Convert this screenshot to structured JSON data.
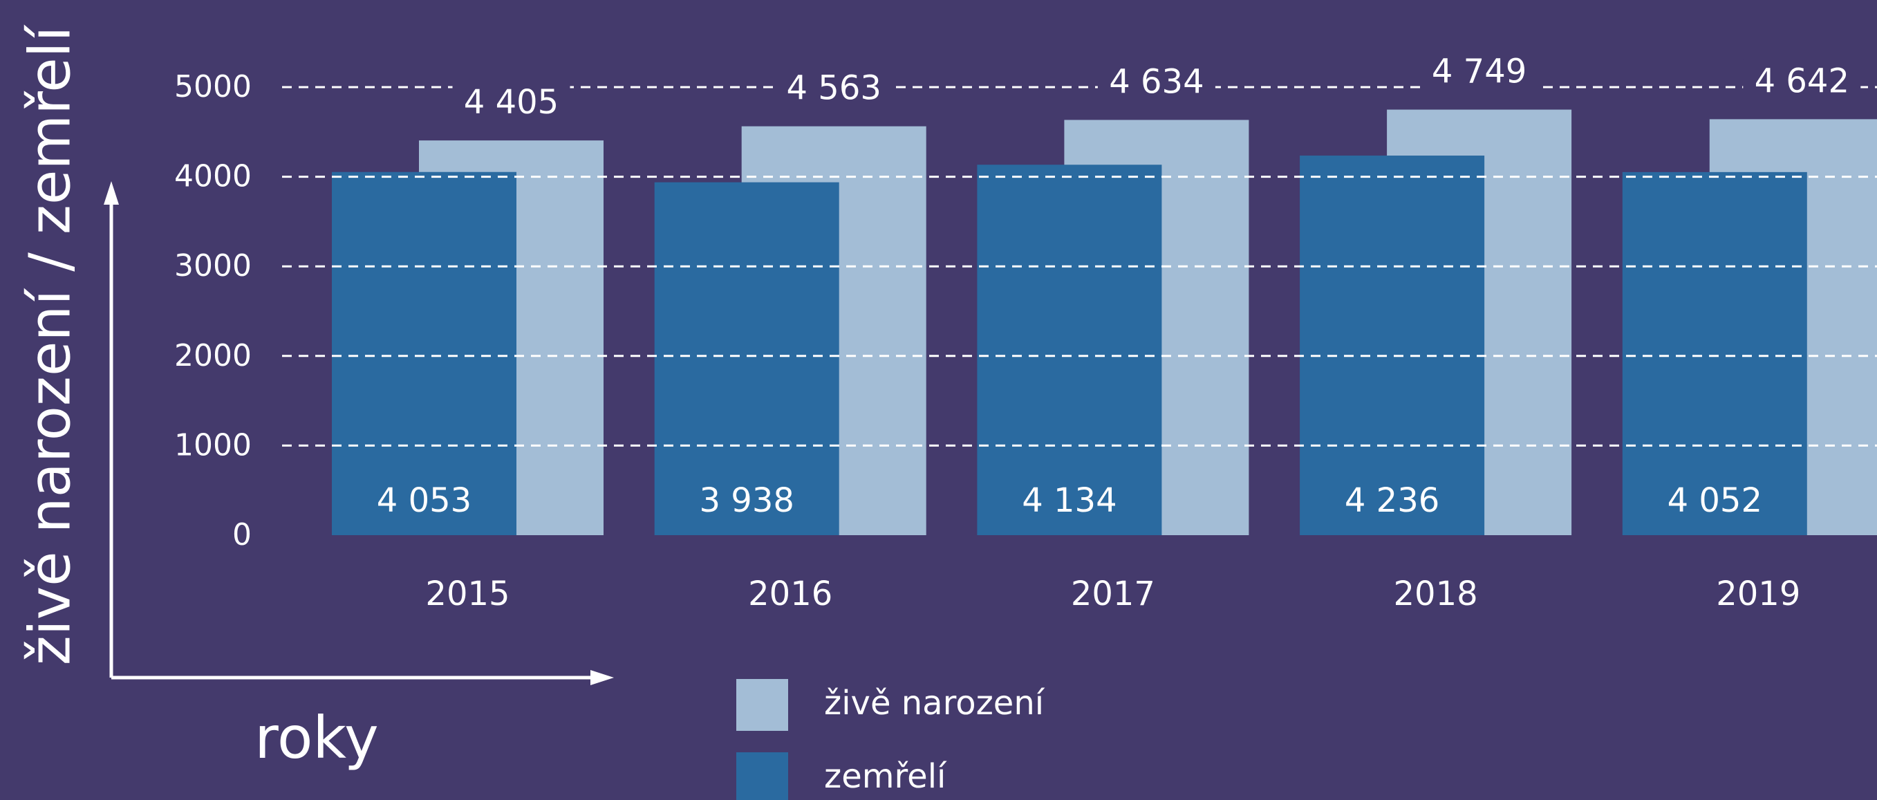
{
  "chart_data": {
    "type": "bar",
    "y_label": "živě narození / zemřelí",
    "x_label": "roky",
    "categories": [
      "2015",
      "2016",
      "2017",
      "2018",
      "2019"
    ],
    "series": [
      {
        "name": "živě narození",
        "color": "#a3bdd6",
        "values": [
          4405,
          4563,
          4634,
          4749,
          4642
        ],
        "value_labels": [
          "4 405",
          "4 563",
          "4 634",
          "4 749",
          "4 642"
        ]
      },
      {
        "name": "zemřelí",
        "color": "#2a6aa0",
        "values": [
          4053,
          3938,
          4134,
          4236,
          4052
        ],
        "value_labels": [
          "4 053",
          "3 938",
          "4 134",
          "4 236",
          "4 052"
        ]
      }
    ],
    "ylim": [
      0,
      5000
    ],
    "yticks": [
      0,
      1000,
      2000,
      3000,
      4000,
      5000
    ],
    "grid": true,
    "legend": "bottom"
  }
}
